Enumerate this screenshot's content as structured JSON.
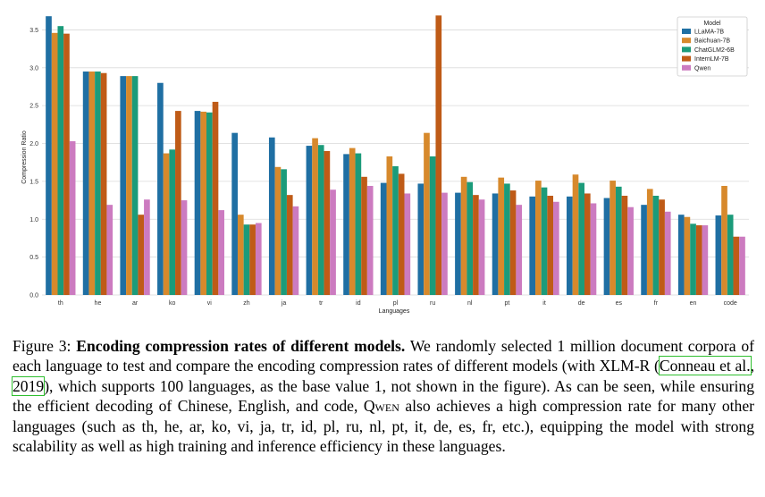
{
  "chart_data": {
    "type": "bar",
    "title": "",
    "xlabel": "Languages",
    "ylabel": "Compression Ratio",
    "ylim": [
      0,
      3.8
    ],
    "yticks": [
      "0.0",
      "0.5",
      "1.0",
      "1.5",
      "2.0",
      "2.5",
      "3.0",
      "3.5"
    ],
    "grid": true,
    "legend_title": "Model",
    "legend_position": "top-right",
    "categories": [
      "th",
      "he",
      "ar",
      "ko",
      "vi",
      "zh",
      "ja",
      "tr",
      "id",
      "pl",
      "ru",
      "nl",
      "pt",
      "it",
      "de",
      "es",
      "fr",
      "en",
      "code"
    ],
    "series": [
      {
        "name": "LLaMA-7B",
        "color": "#1f6fa3",
        "values": [
          3.68,
          2.95,
          2.89,
          2.8,
          2.43,
          2.14,
          2.08,
          1.97,
          1.86,
          1.48,
          1.47,
          1.35,
          1.34,
          1.3,
          1.3,
          1.28,
          1.19,
          1.06,
          1.05
        ]
      },
      {
        "name": "Baichuan-7B",
        "color": "#d7892c",
        "values": [
          3.46,
          2.95,
          2.89,
          1.87,
          2.42,
          1.06,
          1.69,
          2.07,
          1.94,
          1.83,
          2.14,
          1.56,
          1.55,
          1.51,
          1.59,
          1.51,
          1.4,
          1.03,
          1.44
        ]
      },
      {
        "name": "ChatGLM2-6B",
        "color": "#1b9b7a",
        "values": [
          3.55,
          2.95,
          2.89,
          1.92,
          2.41,
          0.93,
          1.66,
          1.98,
          1.87,
          1.7,
          1.83,
          1.49,
          1.47,
          1.42,
          1.48,
          1.43,
          1.31,
          0.94,
          1.06
        ]
      },
      {
        "name": "InternLM-7B",
        "color": "#bf5b17",
        "values": [
          3.45,
          2.93,
          1.06,
          2.43,
          2.55,
          0.93,
          1.32,
          1.9,
          1.56,
          1.6,
          3.69,
          1.32,
          1.38,
          1.31,
          1.34,
          1.31,
          1.26,
          0.92,
          0.77
        ]
      },
      {
        "name": "Qwen",
        "color": "#cc7bc0",
        "values": [
          2.03,
          1.19,
          1.26,
          1.25,
          1.12,
          0.95,
          1.17,
          1.39,
          1.44,
          1.34,
          1.35,
          1.26,
          1.19,
          1.23,
          1.21,
          1.16,
          1.1,
          0.92,
          0.77
        ]
      }
    ]
  },
  "caption": {
    "label": "Figure 3:",
    "bold_title": "Encoding compression rates of different models.",
    "text_1": "We randomly selected 1 million document corpora of each language to test and compare the encoding compression rates of different models (with XLM-R (",
    "cite_author": "Conneau et al.",
    "cite_sep": ", ",
    "cite_year": "2019",
    "text_2": "), which supports 100 languages, as the base value 1, not shown in the figure). As can be seen, while ensuring the efficient decoding of Chinese, English, and code,",
    "qwen_name": "Qwen",
    "text_3": "also achieves a high compression rate for many other languages (such as th, he, ar, ko, vi, ja, tr, id, pl, ru, nl, pt, it, de, es, fr, etc.), equipping the model with strong scalability as well as high training and inference efficiency in these languages."
  }
}
